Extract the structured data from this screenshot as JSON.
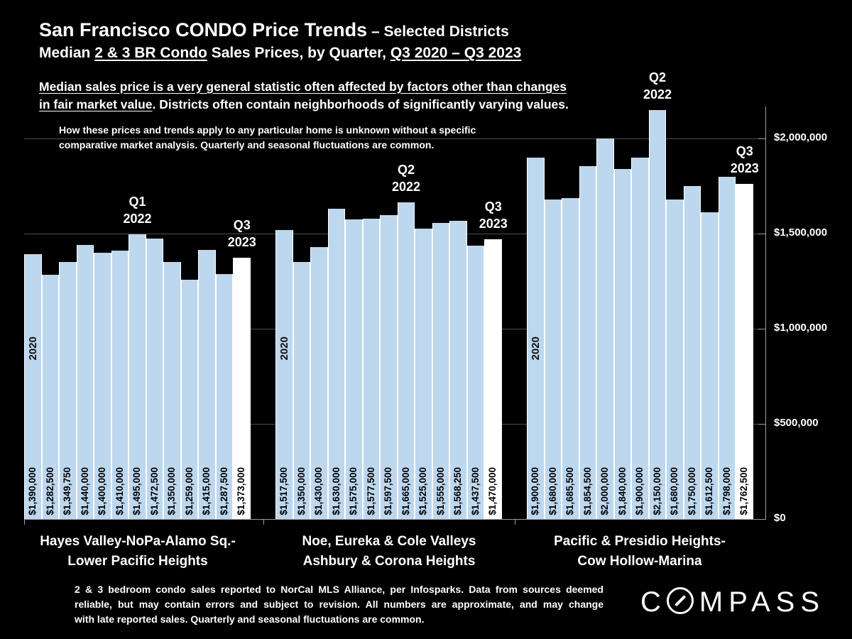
{
  "header": {
    "title_main": "San Francisco CONDO Price Trends",
    "title_suffix": " – Selected Districts",
    "subtitle_prefix": "Median ",
    "subtitle_u1": "2 & 3 BR Condo",
    "subtitle_mid": " Sales Prices, by Quarter, ",
    "subtitle_u2": "Q3 2020 – Q3 2023",
    "note1_line1_underlined": "Median sales price is a very general statistic often affected by factors other than changes",
    "note1_line2_underlined": "in fair market value",
    "note1_line2_rest": ". Districts often contain neighborhoods of significantly varying values.",
    "note2_line1": "How these prices and trends apply to any particular home is unknown without a specific",
    "note2_line2": "comparative market analysis. Quarterly and seasonal fluctuations are common."
  },
  "chart_data": {
    "type": "bar",
    "title": "San Francisco CONDO Price Trends – Selected Districts",
    "subtitle": "Median 2 & 3 BR Condo Sales Prices, by Quarter, Q3 2020 – Q3 2023",
    "xlabel": "",
    "ylabel": "",
    "ylim": [
      0,
      2170000
    ],
    "grid": true,
    "bar_color": "#BDD7EE",
    "highlight_color": "#FFFFFF",
    "y_ticks": [
      {
        "value": 0,
        "label": "$0"
      },
      {
        "value": 500000,
        "label": "$500,000"
      },
      {
        "value": 1000000,
        "label": "$1,000,000"
      },
      {
        "value": 1500000,
        "label": "$1,500,000"
      },
      {
        "value": 2000000,
        "label": "$2,000,000"
      }
    ],
    "groups": [
      {
        "district_line1": "Hayes Valley-NoPa-Alamo Sq.-",
        "district_line2": "Lower Pacific Heights",
        "start_year_label": "2020",
        "values": [
          1390000,
          1282500,
          1349750,
          1440000,
          1400000,
          1410000,
          1495000,
          1472500,
          1350000,
          1259000,
          1415000,
          1287500,
          1373000
        ],
        "labels": [
          "$1,390,000",
          "$1,282,500",
          "$1,349,750",
          "$1,440,000",
          "$1,400,000",
          "$1,410,000",
          "$1,495,000",
          "$1,472,500",
          "$1,350,000",
          "$1,259,000",
          "$1,415,000",
          "$1,287,500",
          "$1,373,000"
        ],
        "annotations": [
          {
            "line1": "Q1",
            "line2": "2022",
            "bar_index": 6
          },
          {
            "line1": "Q3",
            "line2": "2023",
            "bar_index": 12
          }
        ]
      },
      {
        "district_line1": "Noe, Eureka & Cole Valleys",
        "district_line2": "Ashbury & Corona Heights",
        "start_year_label": "2020",
        "values": [
          1517500,
          1350000,
          1430000,
          1630000,
          1575000,
          1577500,
          1597500,
          1665000,
          1525000,
          1555000,
          1568250,
          1437500,
          1470000
        ],
        "labels": [
          "$1,517,500",
          "$1,350,000",
          "$1,430,000",
          "$1,630,000",
          "$1,575,000",
          "$1,577,500",
          "$1,597,500",
          "$1,665,000",
          "$1,525,000",
          "$1,555,000",
          "$1,568,250",
          "$1,437,500",
          "$1,470,000"
        ],
        "annotations": [
          {
            "line1": "Q2",
            "line2": "2022",
            "bar_index": 7
          },
          {
            "line1": "Q3",
            "line2": "2023",
            "bar_index": 12
          }
        ]
      },
      {
        "district_line1": "Pacific & Presidio Heights-",
        "district_line2": "Cow Hollow-Marina",
        "start_year_label": "2020",
        "values": [
          1900000,
          1680000,
          1685500,
          1854500,
          2000000,
          1840000,
          1900000,
          2150000,
          1680000,
          1750000,
          1612500,
          1798000,
          1762500
        ],
        "labels": [
          "$1,900,000",
          "$1,680,000",
          "$1,685,500",
          "$1,854,500",
          "$2,000,000",
          "$1,840,000",
          "$1,900,000",
          "$2,150,000",
          "$1,680,000",
          "$1,750,000",
          "$1,612,500",
          "$1,798,000",
          "$1,762,500"
        ],
        "annotations": [
          {
            "line1": "Q2",
            "line2": "2022",
            "bar_index": 7
          },
          {
            "line1": "Q3",
            "line2": "2023",
            "bar_index": 12
          }
        ]
      }
    ]
  },
  "footer": {
    "disclaimer_lines": [
      "2 & 3 bedroom condo sales reported to NorCal MLS Alliance, per Infosparks. Data from sources deemed",
      "reliable, but may contain errors and subject to revision. All numbers are approximate, and may change",
      "with late reported sales. Quarterly and seasonal fluctuations are common."
    ],
    "logo_left": "C",
    "logo_right": "MPASS"
  },
  "colors": {
    "background": "#000000",
    "bar": "#BDD7EE",
    "highlight": "#FFFFFF",
    "text": "#FFFFFF",
    "gridline": "#4d4d4d",
    "axis": "#9f9f9f"
  }
}
